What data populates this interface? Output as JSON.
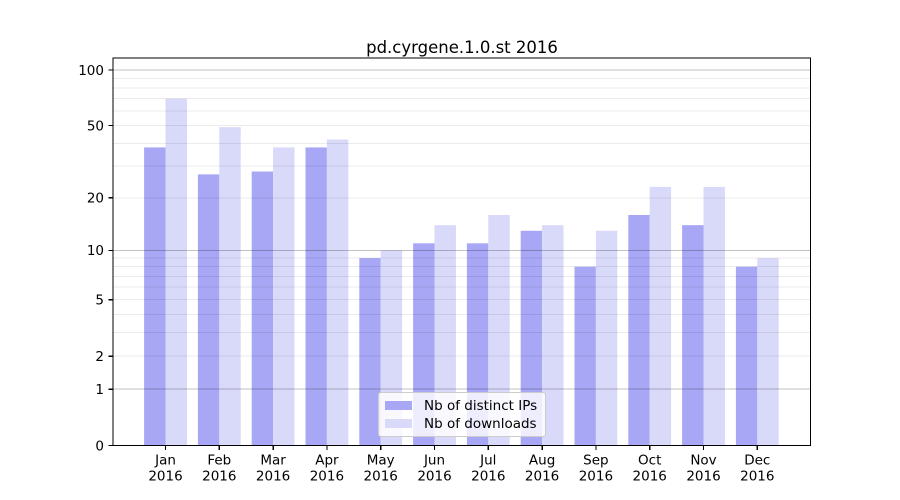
{
  "chart_data": {
    "type": "bar",
    "title": "pd.cyrgene.1.0.st 2016",
    "categories": [
      "Jan",
      "Feb",
      "Mar",
      "Apr",
      "May",
      "Jun",
      "Jul",
      "Aug",
      "Sep",
      "Oct",
      "Nov",
      "Dec"
    ],
    "year_label": "2016",
    "series": [
      {
        "name": "Nb of distinct IPs",
        "color": "#a7a7f5",
        "values": [
          38,
          27,
          28,
          38,
          9,
          11,
          11,
          13,
          8,
          16,
          14,
          8
        ]
      },
      {
        "name": "Nb of downloads",
        "color": "#d9d9fa",
        "values": [
          70,
          49,
          38,
          42,
          10,
          14,
          16,
          14,
          13,
          23,
          23,
          9
        ]
      }
    ],
    "y_scale": "log10(1+x)",
    "y_ticks": [
      0,
      1,
      2,
      5,
      10,
      20,
      50,
      100
    ],
    "y_minor_gridlines": [
      1,
      2,
      3,
      4,
      5,
      6,
      7,
      8,
      9,
      10,
      20,
      30,
      40,
      50,
      60,
      70,
      80,
      90,
      100
    ],
    "y_major_gridlines": [
      1,
      10,
      100
    ],
    "ylim": [
      0,
      115
    ],
    "xlabel": "",
    "ylabel": "",
    "grid": true,
    "legend_position": "bottom-center",
    "axis_color": "#000000",
    "grid_minor_color": "rgba(0,0,0,0.08)",
    "grid_major_color": "rgba(0,0,0,0.24)",
    "background_color": "#ffffff"
  }
}
